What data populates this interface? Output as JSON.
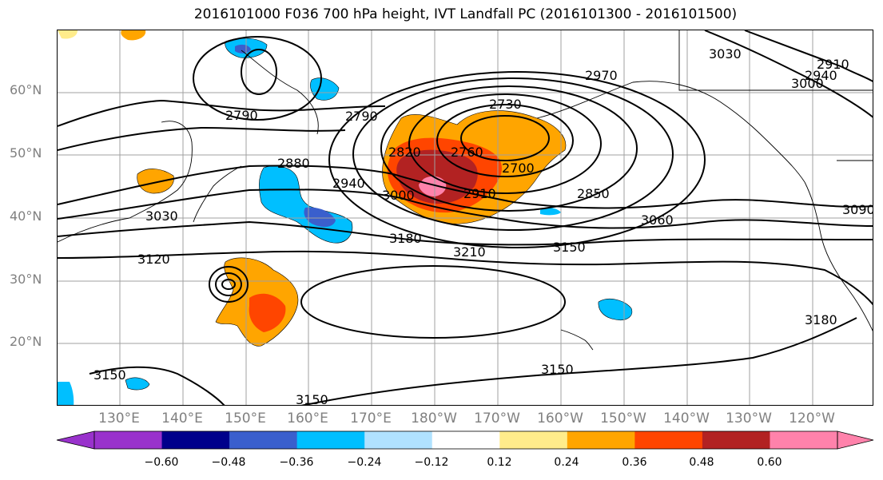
{
  "title": "2016101000 F036 700 hPa height, IVT Landfall PC (2016101300 - 2016101500)",
  "latitude_labels": [
    "60°N",
    "50°N",
    "40°N",
    "30°N",
    "20°N"
  ],
  "longitude_labels": [
    "130°E",
    "140°E",
    "150°E",
    "160°E",
    "170°E",
    "180°W",
    "170°W",
    "160°W",
    "150°W",
    "140°W",
    "130°W",
    "120°W"
  ],
  "colorbar": {
    "colors": [
      "#9932cc",
      "#00008b",
      "#3a5fcd",
      "#00bfff",
      "#b0e2ff",
      "#ffffff",
      "#ffec8b",
      "#ffa500",
      "#ff4500",
      "#b22222",
      "#ff82ab"
    ],
    "tick_labels": [
      "−0.60",
      "−0.48",
      "−0.36",
      "−0.24",
      "−0.12",
      "0.12",
      "0.24",
      "0.36",
      "0.48",
      "0.60"
    ]
  },
  "contour_labels": [
    "2790",
    "2790",
    "2730",
    "2970",
    "3030",
    "2910",
    "2940",
    "3000",
    "2820",
    "2760",
    "2700",
    "2880",
    "2940",
    "3000",
    "2910",
    "2850",
    "3030",
    "3060",
    "3090",
    "3120",
    "3180",
    "3150",
    "3210",
    "3180",
    "3150",
    "3150",
    "3150"
  ]
}
